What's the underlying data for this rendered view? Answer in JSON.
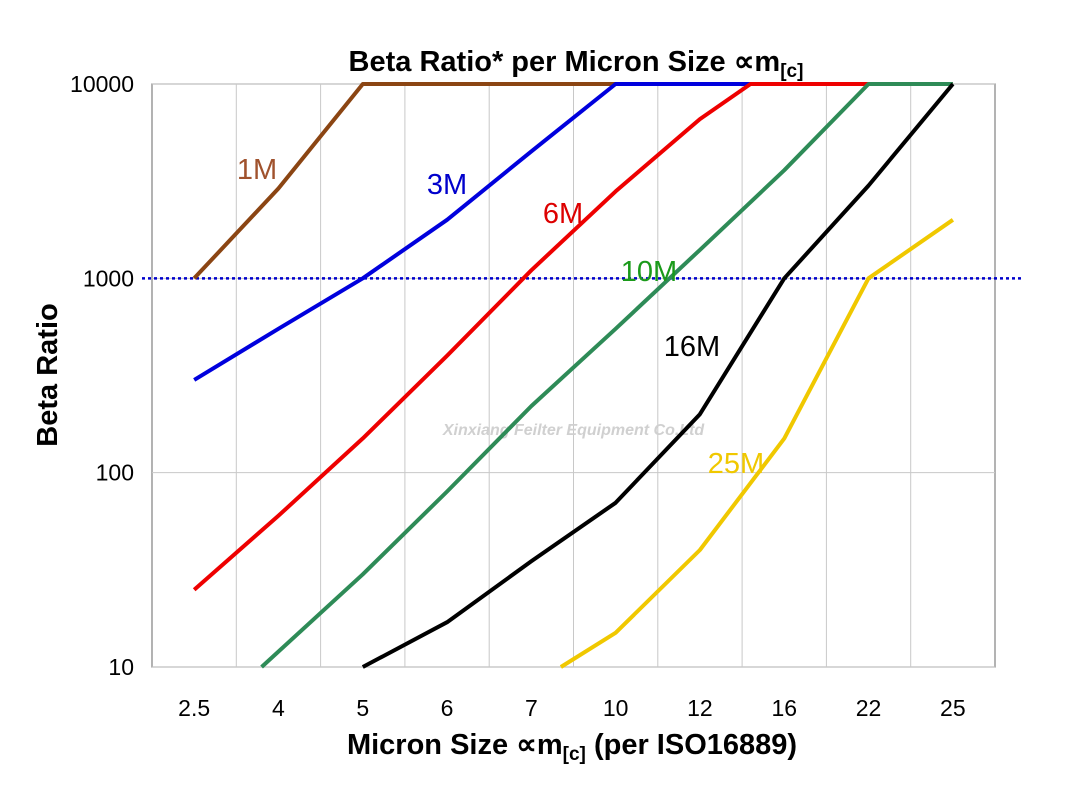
{
  "chart_data": {
    "type": "line",
    "title": "Beta Ratio* per Micron Size ∝m",
    "title_subscript": "[c]",
    "xlabel": "Micron Size ∝m",
    "xlabel_subscript": "[c]",
    "xlabel_suffix": " (per ISO16889)",
    "ylabel": "Beta Ratio",
    "y_scale": "log",
    "ylim": [
      10,
      10000
    ],
    "y_ticks": [
      "10",
      "100",
      "1000",
      "10000"
    ],
    "y_tick_values": [
      10,
      100,
      1000,
      10000
    ],
    "categories": [
      "2.5",
      "4",
      "5",
      "6",
      "7",
      "10",
      "12",
      "16",
      "22",
      "25"
    ],
    "grid": true,
    "reference_line": {
      "y": 1000,
      "color": "#0000cc",
      "style": "dotted"
    },
    "watermark": "Xinxiang Feilter Equipment Co.Ltd",
    "series": [
      {
        "name": "1M",
        "color": "#8b4513",
        "label_color": "#a0522d",
        "points": [
          [
            0,
            1000
          ],
          [
            1,
            2900
          ],
          [
            2,
            10000
          ],
          [
            3,
            10000
          ],
          [
            4,
            10000
          ],
          [
            5,
            10000
          ],
          [
            6,
            10000
          ],
          [
            7,
            10000
          ],
          [
            8,
            10000
          ],
          [
            9,
            10000
          ]
        ]
      },
      {
        "name": "3M",
        "color": "#0000dd",
        "label_color": "#0000cc",
        "points": [
          [
            0,
            300
          ],
          [
            1,
            550
          ],
          [
            2,
            1000
          ],
          [
            3,
            2000
          ],
          [
            4,
            4500
          ],
          [
            5,
            10000
          ],
          [
            6,
            10000
          ],
          [
            7,
            10000
          ],
          [
            8,
            10000
          ],
          [
            9,
            10000
          ]
        ]
      },
      {
        "name": "6M",
        "color": "#ee0000",
        "label_color": "#dd0000",
        "points": [
          [
            0,
            25
          ],
          [
            1,
            60
          ],
          [
            2,
            150
          ],
          [
            3,
            400
          ],
          [
            4,
            1100
          ],
          [
            5,
            2800
          ],
          [
            6,
            6600
          ],
          [
            6.6,
            10000
          ],
          [
            7,
            10000
          ],
          [
            8,
            10000
          ],
          [
            9,
            10000
          ]
        ]
      },
      {
        "name": "10M",
        "color": "#2e8b57",
        "label_color": "#1a9a1a",
        "points": [
          [
            0.8,
            10
          ],
          [
            2,
            30
          ],
          [
            3,
            80
          ],
          [
            4,
            220
          ],
          [
            5,
            550
          ],
          [
            6,
            1400
          ],
          [
            7,
            3600
          ],
          [
            8,
            10000
          ],
          [
            9,
            10000
          ]
        ]
      },
      {
        "name": "16M",
        "color": "#000000",
        "label_color": "#000000",
        "points": [
          [
            2,
            10
          ],
          [
            3,
            17
          ],
          [
            4,
            35
          ],
          [
            5,
            70
          ],
          [
            6,
            200
          ],
          [
            7,
            1000
          ],
          [
            8,
            3000
          ],
          [
            9,
            10000
          ]
        ]
      },
      {
        "name": "25M",
        "color": "#f0c800",
        "label_color": "#f0c800",
        "points": [
          [
            4.35,
            10
          ],
          [
            5,
            15
          ],
          [
            6,
            40
          ],
          [
            7,
            150
          ],
          [
            8,
            1000
          ],
          [
            9,
            2000
          ]
        ]
      }
    ]
  }
}
